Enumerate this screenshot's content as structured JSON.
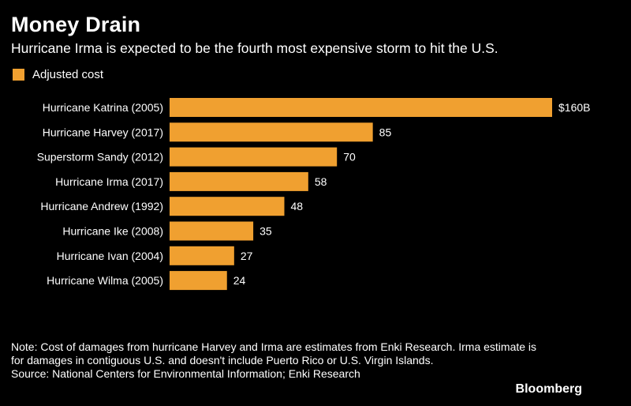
{
  "title": "Money Drain",
  "subtitle": "Hurricane Irma is expected to be the fourth most expensive storm to hit the U.S.",
  "note": "Note: Cost of damages from hurricane Harvey and Irma are estimates from Enki Research. Irma estimate is for damages in contiguous U.S. and doesn't include Puerto Rico or U.S. Virgin Islands.",
  "source": "Source: National Centers for Environmental Information; Enki Research",
  "brand": "Bloomberg",
  "colors": {
    "background": "#000000",
    "bar": "#f0a030",
    "text": "#ffffff"
  },
  "chart_data": {
    "type": "bar",
    "orientation": "horizontal",
    "categories": [
      "Hurricane Katrina (2005)",
      "Hurricane Harvey (2017)",
      "Superstorm Sandy (2012)",
      "Hurricane Irma (2017)",
      "Hurricane Andrew (1992)",
      "Hurricane Ike (2008)",
      "Hurricane Ivan (2004)",
      "Hurricane Wilma (2005)"
    ],
    "series": [
      {
        "name": "Adjusted cost",
        "values": [
          160,
          85,
          70,
          58,
          48,
          35,
          27,
          24
        ]
      }
    ],
    "data_labels": [
      "$160B",
      "85",
      "70",
      "58",
      "48",
      "35",
      "27",
      "24"
    ],
    "xlim": [
      0,
      160
    ],
    "grid": false,
    "legend_position": "top-left"
  }
}
